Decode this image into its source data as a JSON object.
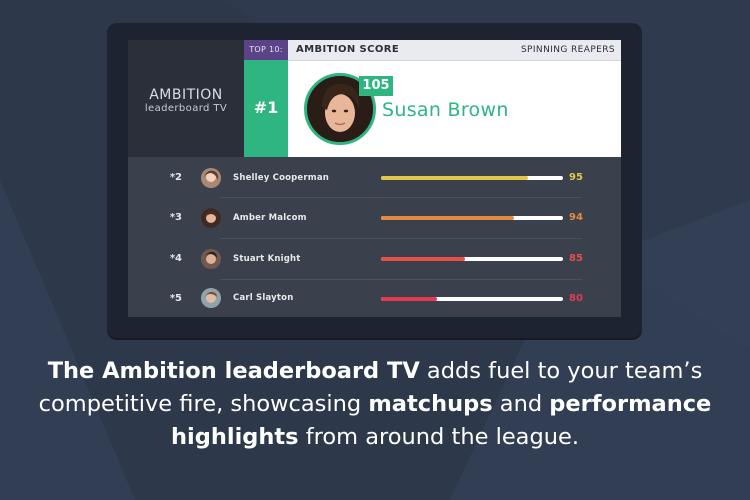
{
  "brand": {
    "name": "AMBITION",
    "subtitle": "leaderboard TV"
  },
  "board": {
    "top_label": "TOP 10:",
    "metric": "AMBITION SCORE",
    "team": "SPINNING REAPERS"
  },
  "leader": {
    "rank": "#1",
    "score": "105",
    "name": "Susan Brown"
  },
  "rows": [
    {
      "rank": "*2",
      "name": "Shelley Cooperman",
      "score": "95",
      "fill": 0.81,
      "color": "#e2c64a"
    },
    {
      "rank": "*3",
      "name": "Amber Malcom",
      "score": "94",
      "fill": 0.73,
      "color": "#e58a43"
    },
    {
      "rank": "*4",
      "name": "Stuart Knight",
      "score": "85",
      "fill": 0.46,
      "color": "#e4504a"
    },
    {
      "rank": "*5",
      "name": "Carl Slayton",
      "score": "80",
      "fill": 0.31,
      "color": "#e23a50"
    }
  ],
  "caption": {
    "p1": "The Ambition leaderboard TV",
    "p2": " adds fuel to your team’s competitive fire, showcasing ",
    "p3": "matchups",
    "p4": " and ",
    "p5": "performance highlights",
    "p6": " from around the league."
  }
}
